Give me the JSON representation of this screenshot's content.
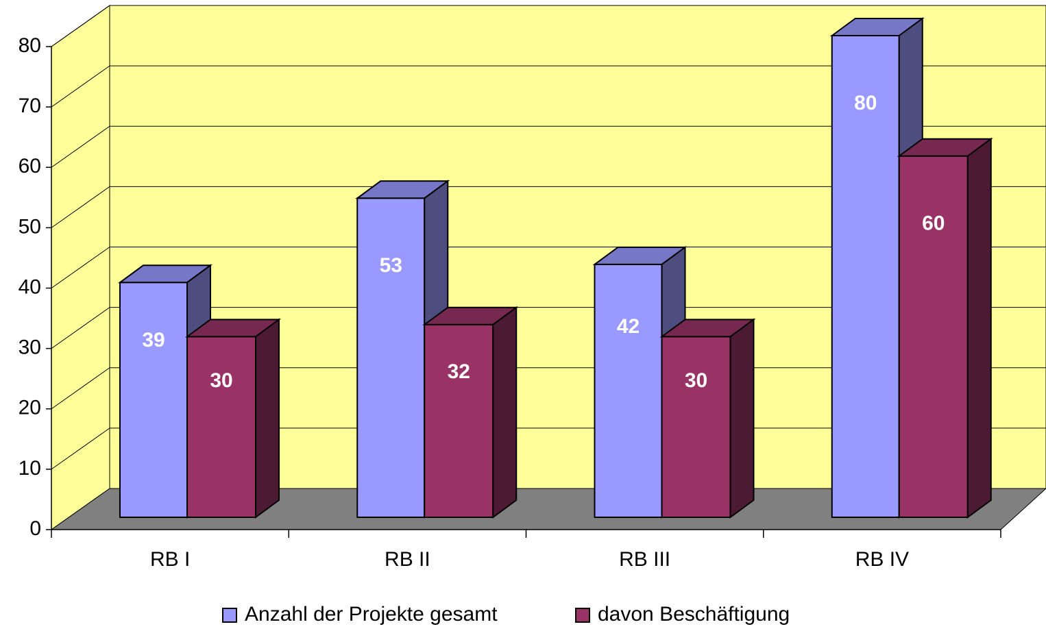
{
  "chart_data": {
    "type": "bar3d",
    "categories": [
      "RB I",
      "RB II",
      "RB III",
      "RB IV"
    ],
    "series": [
      {
        "name": "Anzahl der Projekte gesamt",
        "color": "#9999ff",
        "values": [
          39,
          53,
          42,
          80
        ]
      },
      {
        "name": "davon Beschäftigung",
        "color": "#993366",
        "values": [
          30,
          32,
          30,
          60
        ]
      }
    ],
    "ylim": [
      0,
      80
    ],
    "yticks": [
      0,
      10,
      20,
      30,
      40,
      50,
      60,
      70,
      80
    ],
    "grid": true,
    "wall_color": "#ffff99",
    "floor_color": "#808080",
    "legend": "bottom"
  }
}
